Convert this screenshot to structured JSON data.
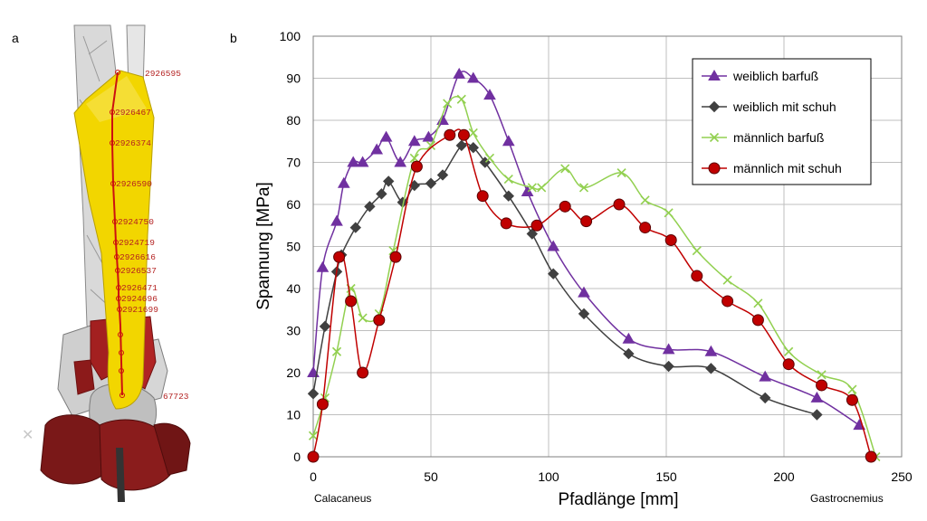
{
  "panel_a_label": "a",
  "panel_b_label": "b",
  "model": {
    "node_labels": [
      "2926595",
      "2926467",
      "2926374",
      "2926590",
      "2924750",
      "2924719",
      "2926616",
      "2926537",
      "2926471",
      "2924696",
      "2921699",
      "67723"
    ]
  },
  "chart_data": {
    "type": "line",
    "xlabel": "Pfadlänge [mm]",
    "ylabel": "Spannung [MPa]",
    "xlim": [
      0,
      250
    ],
    "ylim": [
      0,
      100
    ],
    "xticks": [
      0,
      50,
      100,
      150,
      200,
      250
    ],
    "yticks": [
      0,
      10,
      20,
      30,
      40,
      50,
      60,
      70,
      80,
      90,
      100
    ],
    "x_start_label": "Calacaneus",
    "x_end_label": "Gastrocnemius",
    "grid": true,
    "legend": "top-right",
    "series": [
      {
        "name": "weiblich barfuß",
        "color": "#7030a0",
        "marker": "triangle",
        "x": [
          0,
          4,
          10,
          13,
          17,
          21,
          27,
          31,
          37,
          43,
          49,
          55,
          62,
          68,
          75,
          83,
          91,
          102,
          115,
          134,
          151,
          169,
          192,
          214,
          232
        ],
        "y": [
          20,
          45,
          56,
          65,
          70,
          70,
          73,
          76,
          70,
          75,
          76,
          80,
          91,
          90,
          86,
          75,
          63,
          50,
          39,
          28,
          25.5,
          25,
          19,
          14,
          7.5
        ]
      },
      {
        "name": "weiblich mit schuh",
        "color": "#404040",
        "marker": "diamond",
        "x": [
          0,
          5,
          10,
          12,
          18,
          24,
          29,
          32,
          38,
          43,
          50,
          55,
          63,
          68,
          73,
          83,
          93,
          102,
          115,
          134,
          151,
          169,
          192,
          214
        ],
        "y": [
          15,
          31,
          44,
          48,
          54.5,
          59.5,
          62.5,
          65.5,
          60.5,
          64.5,
          65,
          67,
          74,
          73.5,
          70,
          62,
          53,
          43.5,
          34,
          24.5,
          21.5,
          21,
          14,
          10
        ]
      },
      {
        "name": "männlich barfuß",
        "color": "#92d050",
        "marker": "x",
        "x": [
          0,
          5,
          10,
          16,
          21,
          28,
          34,
          43,
          50,
          57,
          63,
          68,
          75,
          83,
          93,
          97,
          107,
          115,
          131,
          141,
          151,
          163,
          176,
          189,
          202,
          216,
          229,
          239
        ],
        "y": [
          5,
          14,
          25,
          40,
          33,
          34,
          49,
          71,
          74,
          84,
          85,
          77,
          71,
          66,
          64,
          64,
          68.5,
          64,
          67.5,
          61,
          58,
          49,
          42,
          36.5,
          25,
          19.5,
          16,
          0
        ]
      },
      {
        "name": "männlich mit schuh",
        "color": "#c00000",
        "marker": "circle",
        "x": [
          0,
          4,
          11,
          16,
          21,
          28,
          35,
          44,
          58,
          64,
          72,
          82,
          95,
          107,
          116,
          130,
          141,
          152,
          163,
          176,
          189,
          202,
          216,
          229,
          237
        ],
        "y": [
          0,
          12.5,
          47.5,
          37,
          20,
          32.5,
          47.5,
          69,
          76.5,
          76.5,
          62,
          55.5,
          55,
          59.5,
          56,
          60,
          54.5,
          51.5,
          43,
          37,
          32.5,
          22,
          17,
          13.5,
          0
        ]
      }
    ]
  }
}
